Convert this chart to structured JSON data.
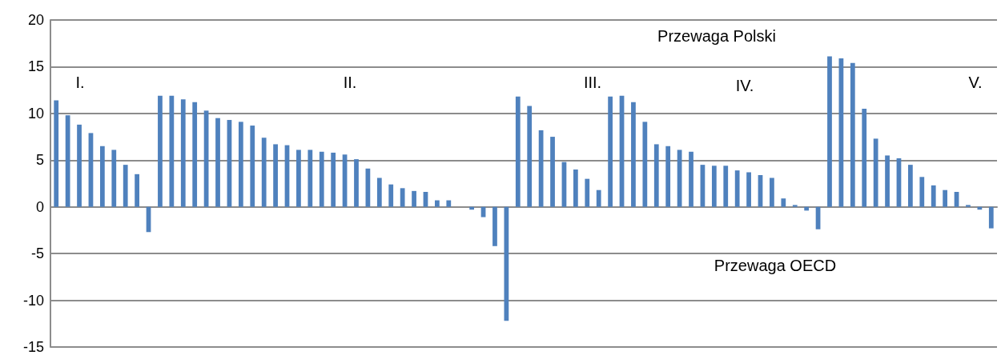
{
  "chart_data": {
    "type": "bar",
    "categories": [
      null,
      null,
      null,
      null,
      null,
      null,
      null,
      null,
      null,
      null,
      null,
      null,
      null,
      null,
      null,
      null,
      null,
      null,
      null,
      null,
      null,
      null,
      null,
      null,
      null,
      null,
      null,
      null,
      null,
      null,
      null,
      null,
      null,
      null,
      null,
      null,
      null,
      null,
      null,
      null,
      null,
      null,
      null,
      null,
      null,
      null,
      null,
      null,
      null,
      null,
      null,
      null,
      null,
      null,
      null,
      null,
      null,
      null,
      null,
      null,
      null,
      null,
      null,
      null,
      null,
      null,
      null,
      null,
      null,
      null,
      null,
      null,
      null,
      null,
      null,
      null,
      null,
      null,
      null,
      null,
      null,
      null
    ],
    "values": [
      11.4,
      9.8,
      8.8,
      7.9,
      6.5,
      6.1,
      4.5,
      3.5,
      -2.7,
      11.9,
      11.9,
      11.5,
      11.2,
      10.3,
      9.5,
      9.3,
      9.1,
      8.7,
      7.4,
      6.7,
      6.6,
      6.1,
      6.1,
      5.9,
      5.8,
      5.6,
      5.1,
      4.1,
      3.1,
      2.4,
      2.0,
      1.7,
      1.6,
      0.7,
      0.7,
      null,
      -0.3,
      -1.1,
      -4.2,
      -12.2,
      11.8,
      10.8,
      8.2,
      7.5,
      4.8,
      4.0,
      3.0,
      1.8,
      11.8,
      11.9,
      11.2,
      9.1,
      6.7,
      6.5,
      6.1,
      5.9,
      4.5,
      4.4,
      4.4,
      3.9,
      3.7,
      3.4,
      3.1,
      0.9,
      0.2,
      -0.4,
      -2.4,
      16.1,
      15.9,
      15.4,
      10.5,
      7.3,
      5.5,
      5.2,
      4.5,
      3.2,
      2.3,
      1.8,
      1.6,
      0.2,
      -0.3,
      -2.3
    ],
    "color": "#4f81bd",
    "ylim": [
      -15,
      20
    ],
    "yticks": [
      -15,
      -10,
      -5,
      0,
      5,
      10,
      15,
      20
    ],
    "grid": "y",
    "tick_labels": "y",
    "annotations": [
      "Przewaga Polski",
      "I.",
      "II.",
      "III.",
      "IV.",
      "V.",
      "Przewaga OECD"
    ]
  }
}
